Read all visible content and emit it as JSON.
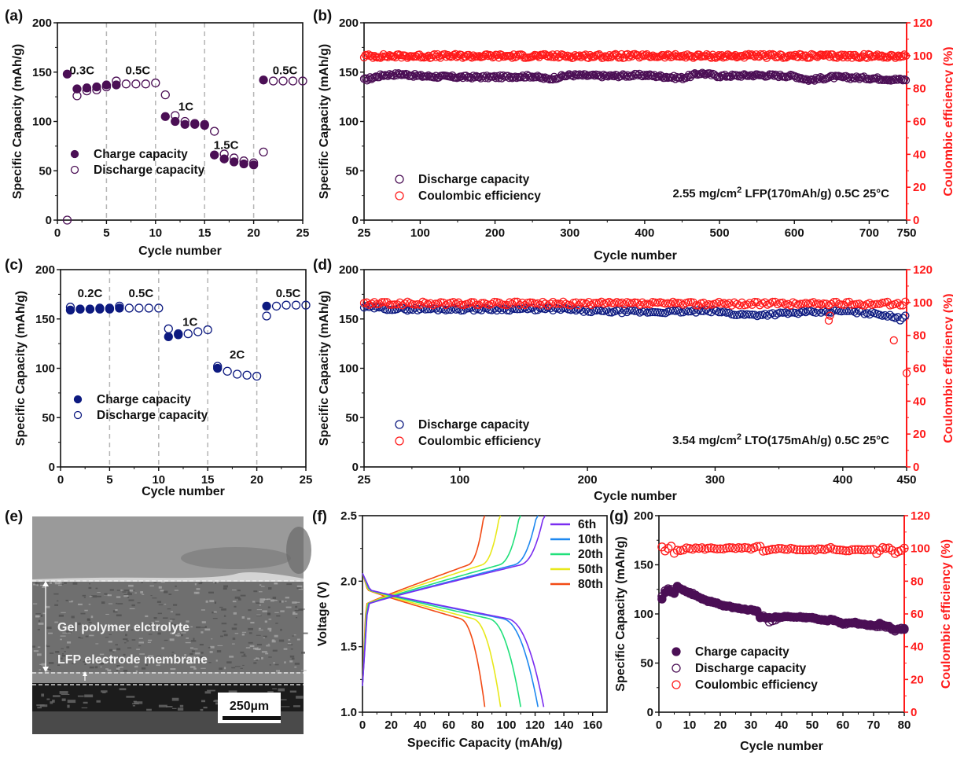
{
  "colors": {
    "purple": "#4b0f55",
    "navy": "#0d1a80",
    "red": "#ff1a1a",
    "c6th": "#7a2df0",
    "c10th": "#1e88f0",
    "c20th": "#20e07a",
    "c50th": "#e8e81a",
    "c80th": "#f24a14"
  },
  "chart_data": [
    {
      "panel": "(a)",
      "type": "scatter",
      "xlabel": "Cycle number",
      "ylabel": "Specific Capacity (mAh/g)",
      "xlim": [
        0,
        25
      ],
      "ylim": [
        0,
        200
      ],
      "xticks": [
        "0",
        "5",
        "10",
        "15",
        "20",
        "25"
      ],
      "yticks": [
        "0",
        "50",
        "100",
        "150",
        "200"
      ],
      "rate_dividers": [
        5,
        10,
        15,
        20
      ],
      "rate_labels": [
        {
          "text": "0.3C",
          "x": 2.5,
          "y": 148
        },
        {
          "text": "0.5C",
          "x": 8.2,
          "y": 148
        },
        {
          "text": "1C",
          "x": 13.1,
          "y": 111
        },
        {
          "text": "1.5C",
          "x": 17.2,
          "y": 72
        },
        {
          "text": "0.5C",
          "x": 23.2,
          "y": 148
        }
      ],
      "legend": [
        "Charge capacity",
        "Discharge capacity"
      ],
      "series": [
        {
          "name": "Charge capacity",
          "marker": "filled",
          "x": [
            1,
            2,
            3,
            4,
            5,
            6,
            11,
            12,
            13,
            14,
            15,
            16,
            17,
            18,
            19,
            20,
            21
          ],
          "y": [
            148,
            133,
            134,
            135,
            137,
            137,
            105,
            100,
            97,
            97,
            96,
            66,
            62,
            59,
            57,
            56,
            142
          ]
        },
        {
          "name": "Discharge capacity",
          "marker": "open",
          "x": [
            1,
            2,
            3,
            4,
            5,
            6,
            7,
            8,
            9,
            10,
            11,
            12,
            13,
            14,
            15,
            16,
            17,
            18,
            19,
            20,
            21,
            22,
            23,
            24,
            25
          ],
          "y": [
            0,
            126,
            131,
            132,
            135,
            141,
            138,
            138,
            138,
            139,
            127,
            106,
            100,
            98,
            97,
            90,
            67,
            63,
            60,
            58,
            69,
            141,
            141,
            141,
            141
          ]
        }
      ]
    },
    {
      "panel": "(b)",
      "type": "scatter",
      "xlabel": "Cycle number",
      "ylabel": "Specific Capacity (mAh/g)",
      "ylabel_right": "Coulombic efficiency (%)",
      "xlim": [
        25,
        750
      ],
      "ylim": [
        0,
        200
      ],
      "ylim_right": [
        0,
        120
      ],
      "xticks": [
        "25",
        "100",
        "200",
        "300",
        "400",
        "500",
        "600",
        "700",
        "750"
      ],
      "yticks": [
        "0",
        "50",
        "100",
        "150",
        "200"
      ],
      "yticks_right": [
        "0",
        "20",
        "40",
        "60",
        "80",
        "100",
        "120"
      ],
      "legend": [
        "Discharge capacity",
        "Coulombic efficiency"
      ],
      "annotation": {
        "pre": "2.55 mg/cm",
        "sup": "2",
        "post": " LFP(170mAh/g) 0.5C 25°C"
      },
      "series": [
        {
          "name": "Discharge capacity",
          "axis": "left",
          "x": [
            25,
            50,
            75,
            100,
            150,
            200,
            250,
            270,
            300,
            350,
            400,
            450,
            475,
            500,
            550,
            600,
            620,
            650,
            700,
            750
          ],
          "y": [
            142,
            147,
            148,
            146,
            145,
            145,
            146,
            143,
            147,
            146,
            147,
            144,
            149,
            146,
            147,
            146,
            142,
            145,
            144,
            142
          ]
        },
        {
          "name": "Coulombic efficiency",
          "axis": "right",
          "x": [
            25,
            100,
            200,
            300,
            400,
            500,
            600,
            700,
            750
          ],
          "y": [
            99.5,
            99.8,
            99.8,
            99.7,
            99.8,
            99.9,
            99.8,
            99.8,
            99.9
          ]
        }
      ]
    },
    {
      "panel": "(c)",
      "type": "scatter",
      "xlabel": "Cycle number",
      "ylabel": "Specific Capacity (mAh/g)",
      "xlim": [
        0,
        25
      ],
      "ylim": [
        0,
        200
      ],
      "xticks": [
        "0",
        "5",
        "10",
        "15",
        "20",
        "25"
      ],
      "yticks": [
        "0",
        "50",
        "100",
        "150",
        "200"
      ],
      "rate_dividers": [
        5,
        10,
        15,
        20
      ],
      "rate_labels": [
        {
          "text": "0.2C",
          "x": 3.0,
          "y": 172
        },
        {
          "text": "0.5C",
          "x": 8.2,
          "y": 172
        },
        {
          "text": "1C",
          "x": 13.2,
          "y": 143
        },
        {
          "text": "2C",
          "x": 18.0,
          "y": 110
        },
        {
          "text": "0.5C",
          "x": 23.2,
          "y": 172
        }
      ],
      "legend": [
        "Charge capacity",
        "Discharge capacity"
      ],
      "series": [
        {
          "name": "Charge capacity",
          "marker": "filled",
          "x": [
            1,
            2,
            3,
            4,
            5,
            6,
            11,
            12,
            16,
            21
          ],
          "y": [
            159,
            160,
            160,
            160,
            160,
            161,
            132,
            134,
            100,
            163
          ]
        },
        {
          "name": "Discharge capacity",
          "marker": "open",
          "x": [
            1,
            2,
            3,
            4,
            5,
            6,
            7,
            8,
            9,
            10,
            11,
            12,
            13,
            14,
            15,
            16,
            17,
            18,
            19,
            20,
            21,
            22,
            23,
            24,
            25
          ],
          "y": [
            162,
            160,
            160,
            161,
            161,
            163,
            161,
            161,
            161,
            161,
            140,
            135,
            135,
            137,
            139,
            102,
            97,
            94,
            93,
            92,
            153,
            163,
            164,
            164,
            164
          ]
        }
      ]
    },
    {
      "panel": "(d)",
      "type": "scatter",
      "xlabel": "Cycle number",
      "ylabel": "Specific Capacity (mAh/g)",
      "ylabel_right": "Coulombic efficiency (%)",
      "xlim": [
        25,
        450
      ],
      "ylim": [
        0,
        200
      ],
      "ylim_right": [
        0,
        120
      ],
      "xticks": [
        "25",
        "100",
        "200",
        "300",
        "400",
        "450"
      ],
      "yticks": [
        "0",
        "50",
        "100",
        "150",
        "200"
      ],
      "yticks_right": [
        "0",
        "20",
        "40",
        "60",
        "80",
        "100",
        "120"
      ],
      "legend": [
        "Discharge capacity",
        "Coulombic efficiency"
      ],
      "annotation": {
        "pre": "3.54 mg/cm",
        "sup": "2",
        "post": " LTO(175mAh/g) 0.5C 25°C"
      },
      "series": [
        {
          "name": "Discharge capacity",
          "axis": "left",
          "x": [
            25,
            50,
            100,
            150,
            180,
            200,
            250,
            300,
            315,
            330,
            360,
            400,
            430,
            445,
            450
          ],
          "y": [
            162,
            160,
            160,
            160,
            160,
            158,
            157,
            158,
            155,
            154,
            156,
            158,
            155,
            150,
            155
          ]
        },
        {
          "name": "Coulombic efficiency",
          "axis": "right",
          "x": [
            25,
            100,
            200,
            300,
            389,
            390,
            440,
            446,
            450
          ],
          "y": [
            99.8,
            100.2,
            99.8,
            99.9,
            89,
            92,
            77,
            97,
            57
          ]
        }
      ]
    },
    {
      "panel": "(f)",
      "type": "line",
      "xlabel": "Specific Capacity (mAh/g)",
      "ylabel": "Voltage (V)",
      "xlim": [
        0,
        170
      ],
      "ylim": [
        1.0,
        2.5
      ],
      "xticks": [
        "0",
        "20",
        "40",
        "60",
        "80",
        "100",
        "120",
        "140",
        "160"
      ],
      "yticks": [
        "1.0",
        "1.5",
        "2.0",
        "2.5"
      ],
      "legend": [
        "6th",
        "10th",
        "20th",
        "50th",
        "80th"
      ],
      "series": [
        {
          "name": "6th",
          "charge_capacity_end": 127,
          "discharge_capacity_end": 126
        },
        {
          "name": "10th",
          "charge_capacity_end": 122,
          "discharge_capacity_end": 122
        },
        {
          "name": "20th",
          "charge_capacity_end": 110,
          "discharge_capacity_end": 110
        },
        {
          "name": "50th",
          "charge_capacity_end": 96,
          "discharge_capacity_end": 96
        },
        {
          "name": "80th",
          "charge_capacity_end": 85,
          "discharge_capacity_end": 85
        }
      ]
    },
    {
      "panel": "(g)",
      "type": "scatter",
      "xlabel": "Cycle number",
      "ylabel": "Specific Capacity (mAh/g)",
      "ylabel_right": "Coulombic efficiency (%)",
      "xlim": [
        0,
        80
      ],
      "ylim": [
        0,
        200
      ],
      "ylim_right": [
        0,
        120
      ],
      "xticks": [
        "0",
        "10",
        "20",
        "30",
        "40",
        "50",
        "60",
        "70",
        "80"
      ],
      "yticks": [
        "0",
        "50",
        "100",
        "150",
        "200"
      ],
      "yticks_right": [
        "0",
        "20",
        "40",
        "60",
        "80",
        "100",
        "120"
      ],
      "legend": [
        "Charge capacity",
        "Discharge capacity",
        "Coulombic efficiency"
      ],
      "series": [
        {
          "name": "Charge capacity",
          "axis": "left",
          "x": [
            1,
            2,
            3,
            4,
            5,
            6,
            10,
            15,
            20,
            25,
            30,
            32,
            33,
            34,
            35,
            40,
            45,
            50,
            55,
            56,
            60,
            64,
            65,
            70,
            72,
            75,
            77,
            78,
            80
          ],
          "y": [
            115,
            122,
            124,
            122,
            121,
            128,
            121,
            114,
            109,
            106,
            104,
            103,
            96,
            97,
            96,
            97,
            97,
            96,
            93,
            95,
            90,
            92,
            91,
            88,
            90,
            87,
            84,
            85,
            84
          ]
        },
        {
          "name": "Discharge capacity",
          "axis": "left",
          "x": [
            1,
            2,
            3,
            4,
            5,
            6,
            10,
            15,
            20,
            25,
            30,
            32,
            33,
            34,
            35,
            36,
            40,
            45,
            50,
            55,
            56,
            60,
            65,
            70,
            75,
            77,
            78,
            80
          ],
          "y": [
            118,
            124,
            125,
            125,
            123,
            126,
            122,
            114,
            110,
            106,
            104,
            102,
            98,
            98,
            97,
            92,
            97,
            97,
            96,
            93,
            94,
            90,
            90,
            88,
            86,
            82,
            85,
            85
          ]
        },
        {
          "name": "Coulombic efficiency",
          "axis": "right",
          "x": [
            1,
            2,
            3,
            4,
            5,
            6,
            10,
            20,
            30,
            33,
            34,
            40,
            50,
            56,
            60,
            70,
            71,
            73,
            75,
            77,
            80
          ],
          "y": [
            101,
            98,
            100,
            101,
            97,
            99,
            100,
            100,
            100,
            101,
            98,
            100,
            99,
            100,
            99,
            99,
            97,
            101,
            100,
            97,
            100
          ]
        }
      ]
    }
  ],
  "sem_image": {
    "panel": "(e)",
    "label_top": "Gel polymer elctrolyte",
    "label_bottom": "LFP electrode membrane",
    "scale_bar": "250µm"
  }
}
